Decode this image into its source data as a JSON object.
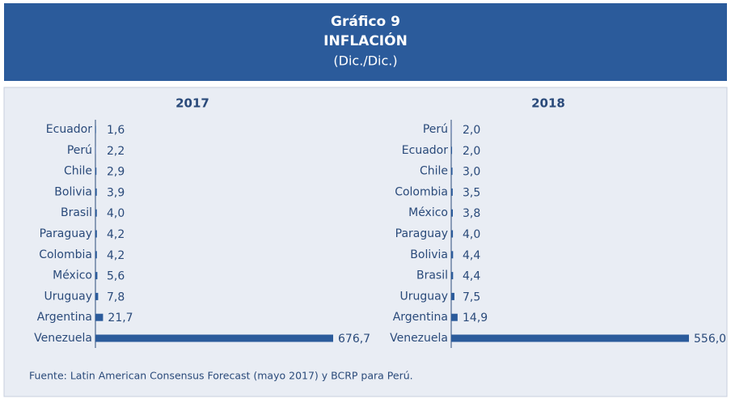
{
  "header": {
    "title": "Gráfico 9",
    "subtitle": "INFLACIÓN",
    "unit": "(Dic./Dic.)"
  },
  "chart_data": [
    {
      "type": "bar",
      "title": "2017",
      "categories": [
        "Ecuador",
        "Perú",
        "Chile",
        "Bolivia",
        "Brasil",
        "Paraguay",
        "Colombia",
        "México",
        "Uruguay",
        "Argentina",
        "Venezuela"
      ],
      "values": [
        1.6,
        2.2,
        2.9,
        3.9,
        4.0,
        4.2,
        4.2,
        5.6,
        7.8,
        21.7,
        676.7
      ],
      "value_labels": [
        "1,6",
        "2,2",
        "2,9",
        "3,9",
        "4,0",
        "4,2",
        "4,2",
        "5,6",
        "7,8",
        "21,7",
        "676,7"
      ],
      "colors": [
        "#2b5b9b",
        "#8d9fc7",
        "#2b5b9b",
        "#2b5b9b",
        "#2b5b9b",
        "#2b5b9b",
        "#2b5b9b",
        "#2b5b9b",
        "#2b5b9b",
        "#2b5b9b",
        "#2b5b9b"
      ]
    },
    {
      "type": "bar",
      "title": "2018",
      "categories": [
        "Perú",
        "Ecuador",
        "Chile",
        "Colombia",
        "México",
        "Paraguay",
        "Bolivia",
        "Brasil",
        "Uruguay",
        "Argentina",
        "Venezuela"
      ],
      "values": [
        2.0,
        2.0,
        3.0,
        3.5,
        3.8,
        4.0,
        4.4,
        4.4,
        7.5,
        14.9,
        556.0
      ],
      "value_labels": [
        "2,0",
        "2,0",
        "3,0",
        "3,5",
        "3,8",
        "4,0",
        "4,4",
        "4,4",
        "7,5",
        "14,9",
        "556,0"
      ],
      "colors": [
        "#8d9fc7",
        "#2b5b9b",
        "#2b5b9b",
        "#2b5b9b",
        "#2b5b9b",
        "#2b5b9b",
        "#2b5b9b",
        "#2b5b9b",
        "#2b5b9b",
        "#2b5b9b",
        "#2b5b9b"
      ]
    }
  ],
  "footnote": "Fuente: Latin American Consensus Forecast (mayo 2017) y BCRP para Perú."
}
